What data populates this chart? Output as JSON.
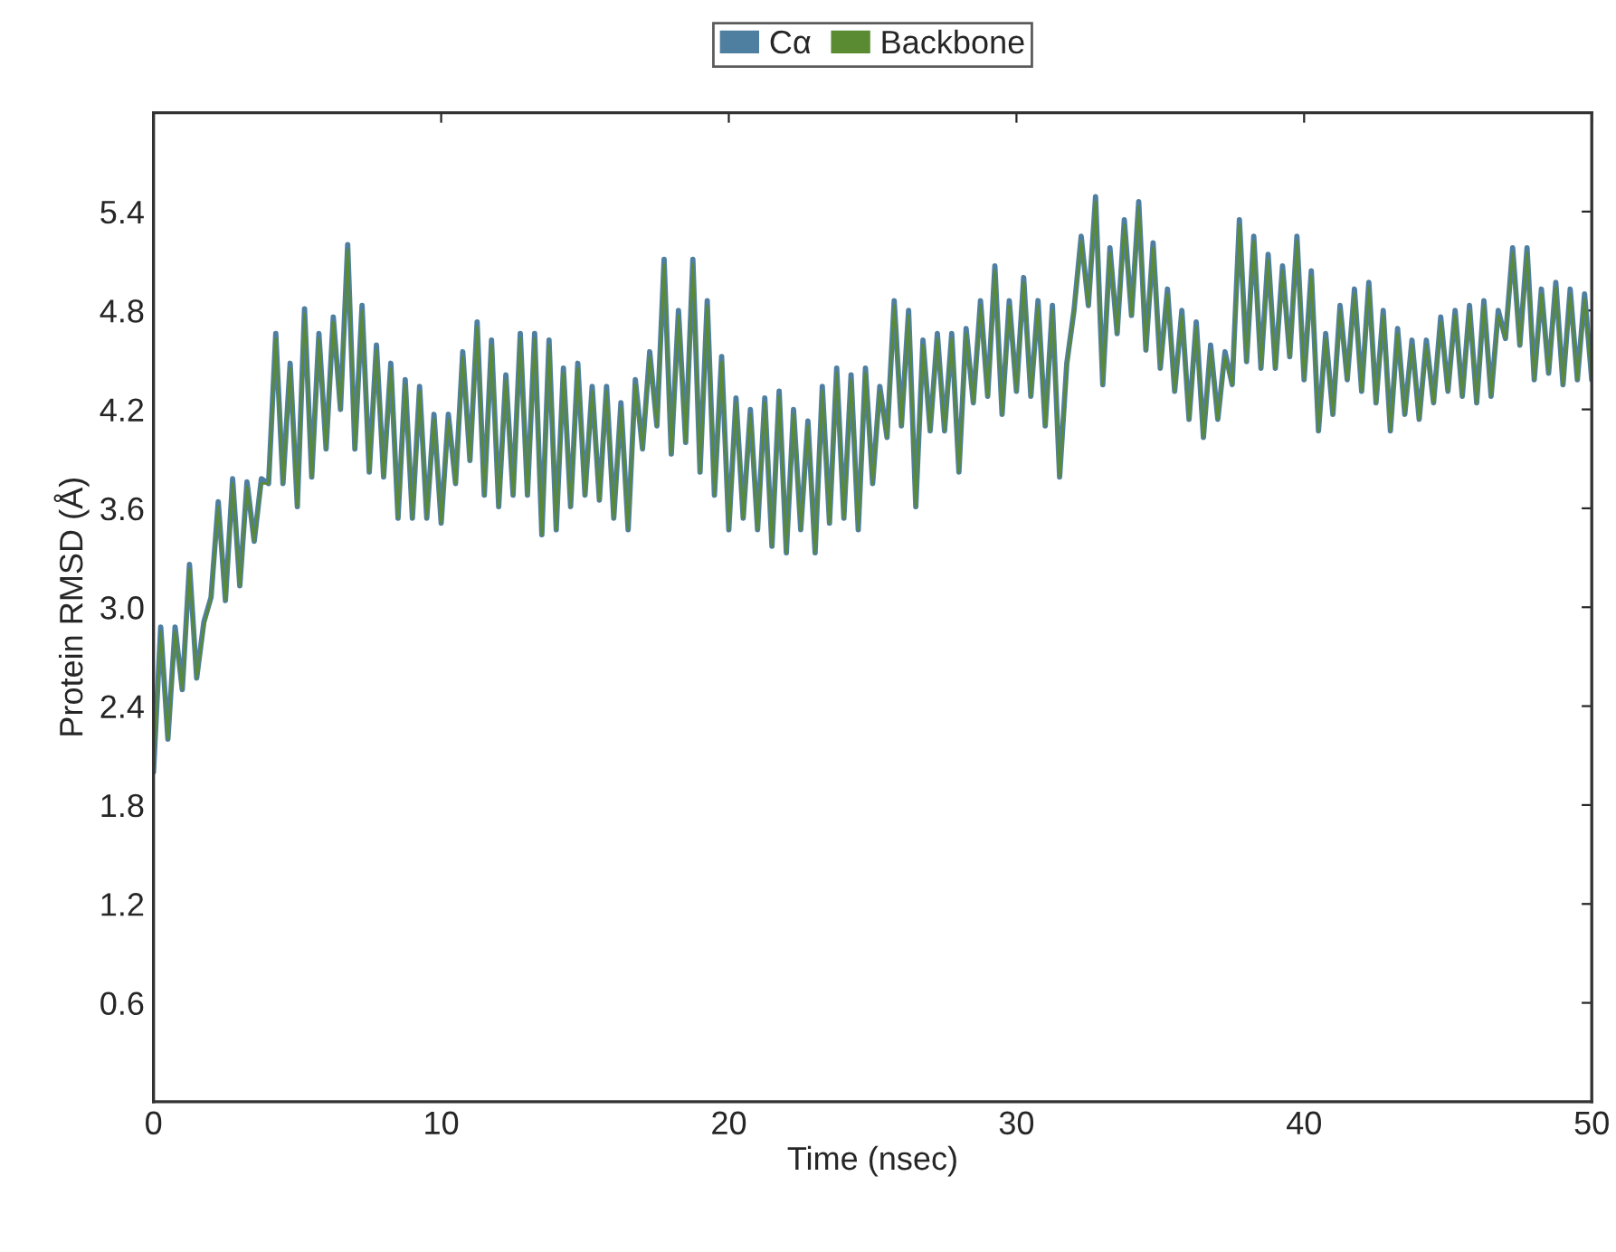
{
  "chart_data": {
    "type": "line",
    "xlabel": "Time (nsec)",
    "ylabel": "Protein RMSD (Å)",
    "x": [
      0,
      0.25,
      0.5,
      0.75,
      1,
      1.25,
      1.5,
      1.75,
      2,
      2.25,
      2.5,
      2.75,
      3,
      3.25,
      3.5,
      3.75,
      4,
      4.25,
      4.5,
      4.75,
      5,
      5.25,
      5.5,
      5.75,
      6,
      6.25,
      6.5,
      6.75,
      7,
      7.25,
      7.5,
      7.75,
      8,
      8.25,
      8.5,
      8.75,
      9,
      9.25,
      9.5,
      9.75,
      10,
      10.25,
      10.5,
      10.75,
      11,
      11.25,
      11.5,
      11.75,
      12,
      12.25,
      12.5,
      12.75,
      13,
      13.25,
      13.5,
      13.75,
      14,
      14.25,
      14.5,
      14.75,
      15,
      15.25,
      15.5,
      15.75,
      16,
      16.25,
      16.5,
      16.75,
      17,
      17.25,
      17.5,
      17.75,
      18,
      18.25,
      18.5,
      18.75,
      19,
      19.25,
      19.5,
      19.75,
      20,
      20.25,
      20.5,
      20.75,
      21,
      21.25,
      21.5,
      21.75,
      22,
      22.25,
      22.5,
      22.75,
      23,
      23.25,
      23.5,
      23.75,
      24,
      24.25,
      24.5,
      24.75,
      25,
      25.25,
      25.5,
      25.75,
      26,
      26.25,
      26.5,
      26.75,
      27,
      27.25,
      27.5,
      27.75,
      28,
      28.25,
      28.5,
      28.75,
      29,
      29.25,
      29.5,
      29.75,
      30,
      30.25,
      30.5,
      30.75,
      31,
      31.25,
      31.5,
      31.75,
      32,
      32.25,
      32.5,
      32.75,
      33,
      33.25,
      33.5,
      33.75,
      34,
      34.25,
      34.5,
      34.75,
      35,
      35.25,
      35.5,
      35.75,
      36,
      36.25,
      36.5,
      36.75,
      37,
      37.25,
      37.5,
      37.75,
      38,
      38.25,
      38.5,
      38.75,
      39,
      39.25,
      39.5,
      39.75,
      40,
      40.25,
      40.5,
      40.75,
      41,
      41.25,
      41.5,
      41.75,
      42,
      42.25,
      42.5,
      42.75,
      43,
      43.25,
      43.5,
      43.75,
      44,
      44.25,
      44.5,
      44.75,
      45,
      45.25,
      45.5,
      45.75,
      46,
      46.25,
      46.5,
      46.75,
      47,
      47.25,
      47.5,
      47.75,
      48,
      48.25,
      48.5,
      48.75,
      49,
      49.25,
      49.5,
      49.75,
      50
    ],
    "series": [
      {
        "name": "Cα",
        "color": "#4f7fa0",
        "values": [
          2.0,
          2.88,
          2.2,
          2.88,
          2.5,
          3.26,
          2.57,
          2.91,
          3.06,
          3.64,
          3.04,
          3.78,
          3.13,
          3.76,
          3.4,
          3.78,
          3.75,
          4.66,
          3.75,
          4.48,
          3.61,
          4.81,
          3.79,
          4.66,
          3.96,
          4.76,
          4.2,
          5.2,
          3.96,
          4.83,
          3.82,
          4.59,
          3.79,
          4.48,
          3.54,
          4.38,
          3.54,
          4.34,
          3.54,
          4.17,
          3.51,
          4.17,
          3.75,
          4.55,
          3.89,
          4.73,
          3.68,
          4.62,
          3.61,
          4.41,
          3.68,
          4.66,
          3.68,
          4.66,
          3.44,
          4.62,
          3.47,
          4.45,
          3.61,
          4.48,
          3.68,
          4.34,
          3.65,
          4.34,
          3.54,
          4.24,
          3.47,
          4.38,
          3.96,
          4.55,
          4.1,
          5.11,
          3.93,
          4.8,
          4.0,
          5.11,
          3.82,
          4.86,
          3.68,
          4.52,
          3.47,
          4.27,
          3.54,
          4.2,
          3.47,
          4.27,
          3.37,
          4.31,
          3.33,
          4.2,
          3.47,
          4.13,
          3.33,
          4.34,
          3.51,
          4.45,
          3.54,
          4.41,
          3.47,
          4.45,
          3.75,
          4.34,
          4.03,
          4.86,
          4.1,
          4.8,
          3.61,
          4.62,
          4.07,
          4.66,
          4.07,
          4.66,
          3.82,
          4.69,
          4.24,
          4.86,
          4.28,
          5.07,
          4.17,
          4.86,
          4.31,
          5.0,
          4.28,
          4.86,
          4.1,
          4.83,
          3.79,
          4.48,
          4.8,
          5.25,
          4.83,
          5.49,
          4.35,
          5.18,
          4.66,
          5.35,
          4.77,
          5.46,
          4.56,
          5.21,
          4.45,
          4.93,
          4.31,
          4.8,
          4.14,
          4.73,
          4.03,
          4.59,
          4.14,
          4.55,
          4.35,
          5.35,
          4.49,
          5.25,
          4.45,
          5.14,
          4.45,
          5.07,
          4.52,
          5.25,
          4.38,
          5.04,
          4.07,
          4.66,
          4.17,
          4.83,
          4.38,
          4.93,
          4.31,
          4.97,
          4.24,
          4.8,
          4.07,
          4.69,
          4.17,
          4.62,
          4.14,
          4.62,
          4.24,
          4.76,
          4.31,
          4.8,
          4.28,
          4.83,
          4.24,
          4.86,
          4.28,
          4.8,
          4.63,
          5.18,
          4.59,
          5.18,
          4.38,
          4.93,
          4.42,
          4.97,
          4.35,
          4.93,
          4.38,
          4.9,
          4.38
        ]
      },
      {
        "name": "Backbone",
        "color": "#5a8a32",
        "values": [
          2.0,
          2.85,
          2.2,
          2.85,
          2.5,
          3.23,
          2.57,
          2.88,
          3.06,
          3.61,
          3.04,
          3.75,
          3.13,
          3.73,
          3.4,
          3.75,
          3.75,
          4.63,
          3.75,
          4.45,
          3.61,
          4.78,
          3.79,
          4.63,
          3.96,
          4.73,
          4.2,
          5.17,
          3.96,
          4.8,
          3.82,
          4.56,
          3.79,
          4.45,
          3.54,
          4.35,
          3.54,
          4.31,
          3.54,
          4.14,
          3.51,
          4.14,
          3.75,
          4.52,
          3.89,
          4.7,
          3.68,
          4.59,
          3.61,
          4.38,
          3.68,
          4.63,
          3.68,
          4.63,
          3.44,
          4.59,
          3.47,
          4.42,
          3.61,
          4.45,
          3.68,
          4.31,
          3.65,
          4.31,
          3.54,
          4.21,
          3.47,
          4.35,
          3.96,
          4.52,
          4.1,
          5.08,
          3.93,
          4.77,
          4.0,
          5.08,
          3.82,
          4.83,
          3.68,
          4.49,
          3.47,
          4.24,
          3.54,
          4.17,
          3.47,
          4.24,
          3.37,
          4.28,
          3.33,
          4.17,
          3.47,
          4.1,
          3.33,
          4.31,
          3.51,
          4.42,
          3.54,
          4.38,
          3.47,
          4.42,
          3.75,
          4.31,
          4.03,
          4.83,
          4.1,
          4.77,
          3.61,
          4.59,
          4.07,
          4.63,
          4.07,
          4.63,
          3.82,
          4.66,
          4.24,
          4.83,
          4.28,
          5.04,
          4.17,
          4.83,
          4.31,
          4.97,
          4.28,
          4.83,
          4.1,
          4.8,
          3.79,
          4.45,
          4.8,
          5.22,
          4.83,
          5.46,
          4.35,
          5.15,
          4.66,
          5.32,
          4.77,
          5.43,
          4.56,
          5.18,
          4.45,
          4.9,
          4.31,
          4.77,
          4.14,
          4.7,
          4.03,
          4.56,
          4.14,
          4.52,
          4.35,
          5.32,
          4.49,
          5.22,
          4.45,
          5.11,
          4.45,
          5.04,
          4.52,
          5.22,
          4.38,
          5.01,
          4.07,
          4.63,
          4.17,
          4.8,
          4.38,
          4.9,
          4.31,
          4.94,
          4.24,
          4.77,
          4.07,
          4.66,
          4.17,
          4.59,
          4.14,
          4.59,
          4.24,
          4.73,
          4.31,
          4.77,
          4.28,
          4.8,
          4.24,
          4.83,
          4.28,
          4.77,
          4.63,
          5.15,
          4.59,
          5.15,
          4.38,
          4.9,
          4.42,
          4.94,
          4.35,
          4.9,
          4.38,
          4.87,
          4.38
        ]
      }
    ],
    "xlim": [
      0,
      50
    ],
    "xticks": [
      0,
      10,
      20,
      30,
      40,
      50
    ],
    "ylim": [
      0,
      6.0
    ],
    "yticks": [
      0.6,
      1.2,
      1.8,
      2.4,
      {
        "value": 3,
        "label": "3.0"
      },
      3.6,
      4.2,
      4.8,
      5.4
    ],
    "legend": "top",
    "marker": "none",
    "line_style": "solid"
  }
}
